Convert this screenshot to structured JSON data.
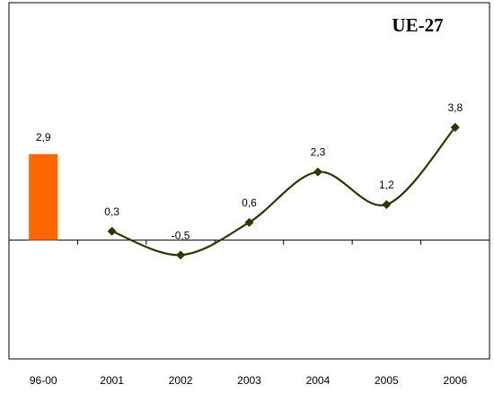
{
  "chart_data": {
    "type": "combo",
    "title": "UE-27",
    "categories": [
      "96-00",
      "2001",
      "2002",
      "2003",
      "2004",
      "2005",
      "2006"
    ],
    "ylim": [
      -4,
      8
    ],
    "series": [
      {
        "type": "bar",
        "color": "#ff6600",
        "values": [
          2.9,
          null,
          null,
          null,
          null,
          null,
          null
        ],
        "value_labels": [
          "2,9",
          null,
          null,
          null,
          null,
          null,
          null
        ]
      },
      {
        "type": "line",
        "color": "#333300",
        "smooth": true,
        "marker": "diamond",
        "values": [
          null,
          0.3,
          -0.5,
          0.6,
          2.3,
          1.2,
          3.8
        ],
        "value_labels": [
          null,
          "0,3",
          "-0,5",
          "0,6",
          "2,3",
          "1,2",
          "3,8"
        ]
      }
    ]
  }
}
